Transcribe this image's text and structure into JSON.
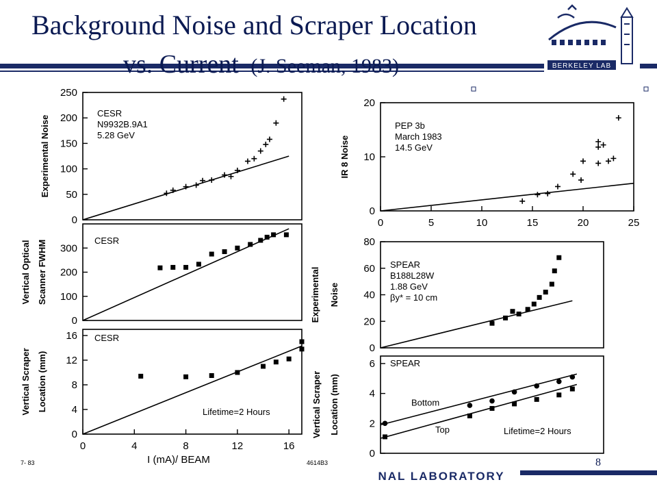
{
  "slide": {
    "title_line1": "Background Noise and Scraper Location",
    "title_line2_main": "vs. Current",
    "title_line2_cite": "(J. Seeman, 1983)",
    "page_number": "8",
    "header_logo_text": "BERKELEY LAB",
    "footer_logo_text": "NAL LABORATORY",
    "corner_code_left": "7- 83",
    "corner_code_right": "4614B3",
    "colors": {
      "title": "#0b1a52",
      "rule": "#1a2a66",
      "logo": "#1a2a66"
    }
  },
  "chart_data": [
    {
      "id": "cesr-noise",
      "type": "scatter",
      "ylabel": "Experimental Noise",
      "annotation": [
        "CESR",
        "N9932B.9A1",
        "5.28 GeV"
      ],
      "xlim": [
        0,
        17
      ],
      "ylim": [
        0,
        250
      ],
      "yticks": [
        0,
        50,
        100,
        150,
        200,
        250
      ],
      "marker": "plus",
      "points": [
        [
          6.5,
          52
        ],
        [
          7.0,
          58
        ],
        [
          8.0,
          65
        ],
        [
          8.8,
          68
        ],
        [
          9.3,
          77
        ],
        [
          10.0,
          78
        ],
        [
          11.0,
          88
        ],
        [
          11.5,
          85
        ],
        [
          12.0,
          97
        ],
        [
          12.8,
          115
        ],
        [
          13.3,
          120
        ],
        [
          13.8,
          135
        ],
        [
          14.2,
          148
        ],
        [
          14.5,
          158
        ],
        [
          15.0,
          190
        ],
        [
          15.6,
          237
        ]
      ],
      "lines": [
        [
          [
            0,
            0
          ],
          [
            16,
            125
          ]
        ]
      ]
    },
    {
      "id": "cesr-optical",
      "type": "scatter",
      "ylabel": [
        "Vertical Optical",
        "Scanner FWHM"
      ],
      "annotation": [
        "CESR"
      ],
      "xlim": [
        0,
        17
      ],
      "ylim": [
        0,
        400
      ],
      "yticks": [
        0,
        100,
        200,
        300
      ],
      "marker": "square",
      "points": [
        [
          6.0,
          218
        ],
        [
          7.0,
          220
        ],
        [
          8.0,
          220
        ],
        [
          9.0,
          233
        ],
        [
          10.0,
          275
        ],
        [
          11.0,
          285
        ],
        [
          12.0,
          300
        ],
        [
          13.0,
          315
        ],
        [
          13.8,
          332
        ],
        [
          14.3,
          345
        ],
        [
          14.8,
          355
        ],
        [
          15.8,
          355
        ]
      ],
      "lines": [
        [
          [
            0,
            0
          ],
          [
            16,
            380
          ]
        ]
      ]
    },
    {
      "id": "cesr-scraper",
      "type": "scatter",
      "ylabel": [
        "Vertical Scraper",
        "Location (mm)"
      ],
      "annotation": [
        "CESR"
      ],
      "note": "Lifetime=2 Hours",
      "xlim": [
        0,
        17
      ],
      "ylim": [
        0,
        17
      ],
      "yticks": [
        0,
        4,
        8,
        12,
        16
      ],
      "xticks": [
        0,
        4,
        8,
        12,
        16
      ],
      "xlabel": "I (mA)/ BEAM",
      "marker": "square",
      "points": [
        [
          4.5,
          9.4
        ],
        [
          8.0,
          9.3
        ],
        [
          10.0,
          9.5
        ],
        [
          12.0,
          10.0
        ],
        [
          14.0,
          11.0
        ],
        [
          15.0,
          11.7
        ],
        [
          16.0,
          12.2
        ],
        [
          17.0,
          13.8
        ],
        [
          17.0,
          15.0
        ]
      ],
      "lines": [
        [
          [
            0,
            0
          ],
          [
            17,
            14.3
          ]
        ]
      ]
    },
    {
      "id": "pep-noise",
      "type": "scatter",
      "ylabel": "IR 8 Noise",
      "annotation": [
        "PEP 3b",
        "March 1983",
        "14.5 GeV"
      ],
      "xlim": [
        0,
        25
      ],
      "ylim": [
        0,
        20
      ],
      "yticks": [
        0,
        10,
        20
      ],
      "xticks": [
        0,
        5,
        10,
        15,
        20,
        25
      ],
      "marker": "plus",
      "points": [
        [
          14.0,
          1.8
        ],
        [
          15.5,
          3.0
        ],
        [
          16.5,
          3.2
        ],
        [
          17.5,
          4.5
        ],
        [
          19.0,
          6.8
        ],
        [
          19.8,
          5.7
        ],
        [
          20.0,
          9.2
        ],
        [
          21.5,
          11.8
        ],
        [
          21.5,
          12.8
        ],
        [
          21.5,
          8.8
        ],
        [
          22.0,
          12.2
        ],
        [
          22.5,
          9.2
        ],
        [
          23.0,
          9.7
        ],
        [
          23.5,
          17.2
        ]
      ],
      "lines": [
        [
          [
            0,
            0
          ],
          [
            25,
            5.1
          ]
        ]
      ]
    },
    {
      "id": "spear-noise",
      "type": "scatter",
      "ylabel": [
        "Experimental",
        "Noise"
      ],
      "annotation": [
        "SPEAR",
        "B188L28W",
        "1.88 GeV",
        "βy* = 10 cm"
      ],
      "xlim": [
        0,
        25
      ],
      "ylim": [
        0,
        80
      ],
      "yticks": [
        0,
        20,
        40,
        60,
        80
      ],
      "marker": "square",
      "points": [
        [
          12.5,
          18.5
        ],
        [
          14.0,
          22.5
        ],
        [
          14.8,
          27.5
        ],
        [
          15.5,
          25.5
        ],
        [
          16.5,
          29.0
        ],
        [
          17.2,
          33.0
        ],
        [
          17.8,
          38.0
        ],
        [
          18.5,
          42.0
        ],
        [
          19.2,
          48.0
        ],
        [
          19.5,
          58.0
        ],
        [
          20.0,
          68.0
        ]
      ],
      "lines": [
        [
          [
            0,
            0
          ],
          [
            21.5,
            35.5
          ]
        ]
      ]
    },
    {
      "id": "spear-scraper",
      "type": "scatter",
      "ylabel": [
        "Vertical Scraper",
        "Location (mm)"
      ],
      "annotation": [
        "SPEAR"
      ],
      "note": "Lifetime=2 Hours",
      "series": [
        {
          "name": "Bottom",
          "marker": "circle",
          "points": [
            [
              0.5,
              2.0
            ],
            [
              10.0,
              3.2
            ],
            [
              12.5,
              3.5
            ],
            [
              15.0,
              4.1
            ],
            [
              17.5,
              4.5
            ],
            [
              20.0,
              4.8
            ],
            [
              21.5,
              5.1
            ]
          ]
        },
        {
          "name": "Top",
          "marker": "square",
          "points": [
            [
              0.5,
              1.1
            ],
            [
              10.0,
              2.5
            ],
            [
              12.5,
              3.0
            ],
            [
              15.0,
              3.3
            ],
            [
              17.5,
              3.6
            ],
            [
              20.0,
              3.9
            ],
            [
              21.5,
              4.3
            ]
          ]
        }
      ],
      "xlim": [
        0,
        25
      ],
      "ylim": [
        0,
        6.5
      ],
      "yticks": [
        0,
        2,
        4,
        6
      ],
      "lines": [
        [
          [
            0,
            1.9
          ],
          [
            22,
            5.3
          ]
        ],
        [
          [
            0,
            1.0
          ],
          [
            22,
            4.6
          ]
        ]
      ]
    }
  ]
}
